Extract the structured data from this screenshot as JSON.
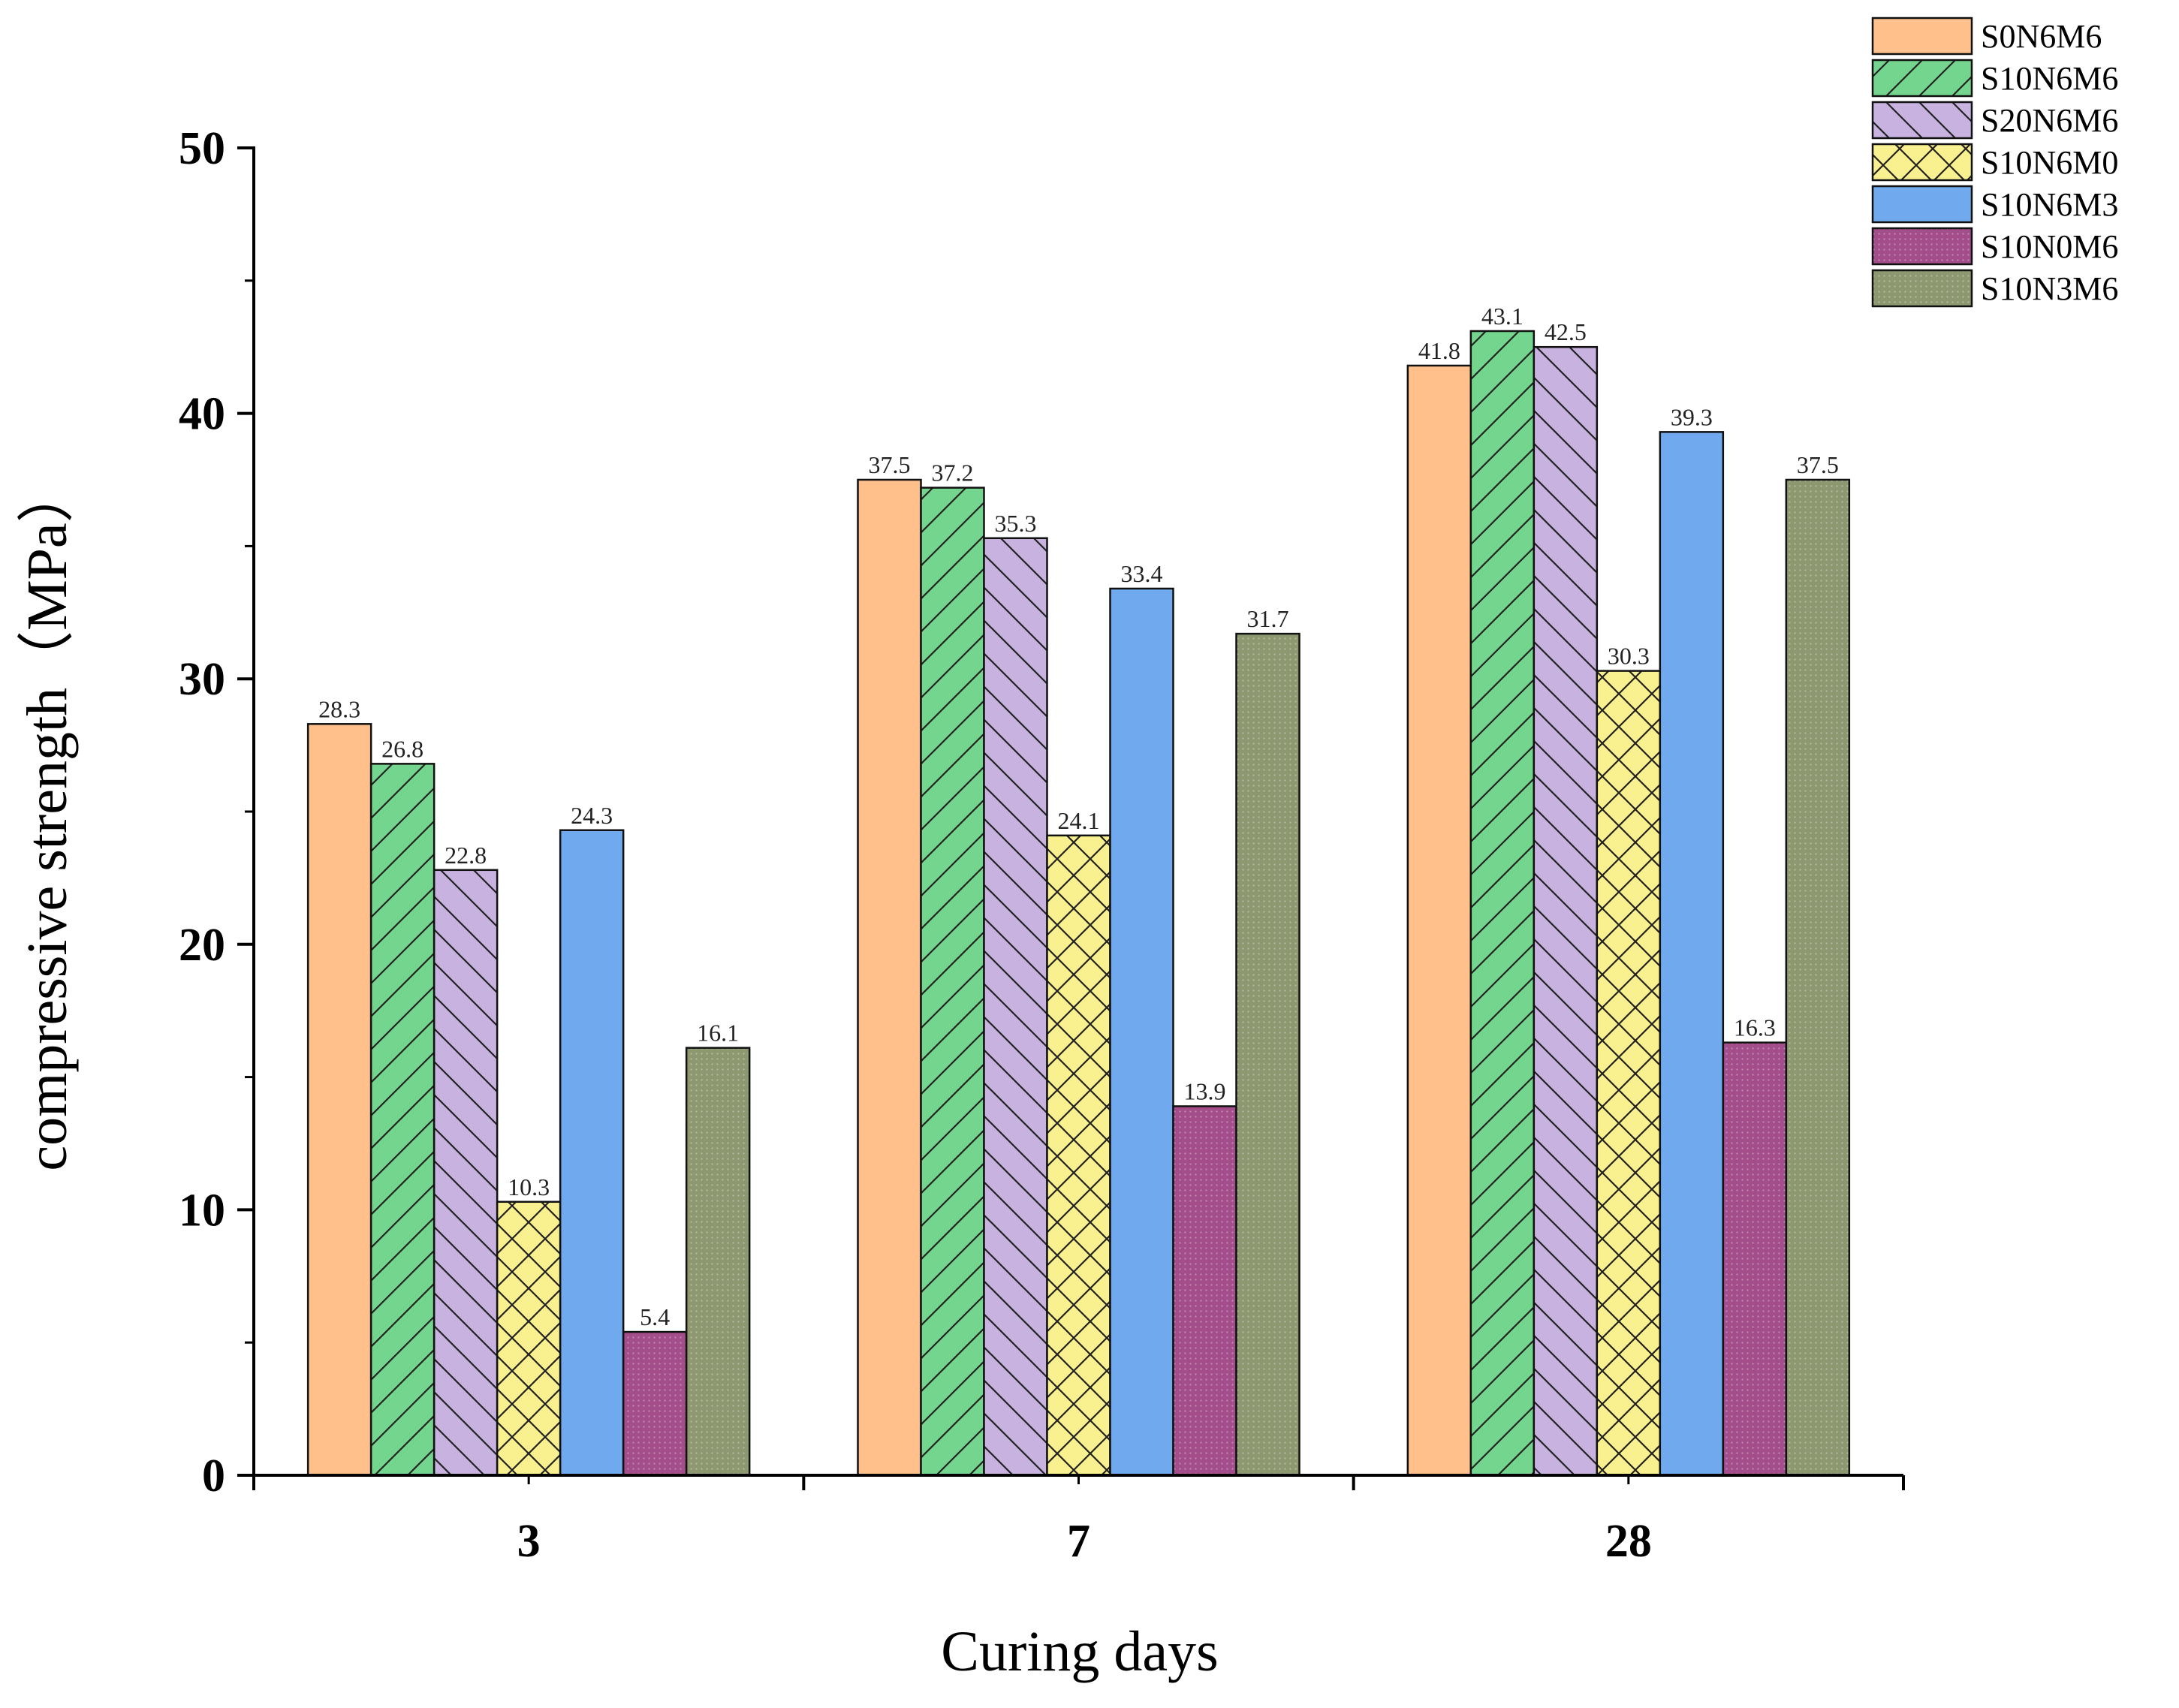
{
  "chart_data": {
    "type": "bar",
    "title": "",
    "xlabel": "Curing days",
    "ylabel": "compressive strength（MPa）",
    "ylim": [
      0,
      50
    ],
    "yticks": [
      0,
      10,
      20,
      30,
      40,
      50
    ],
    "categories": [
      "3",
      "7",
      "28"
    ],
    "legend_position": "top-right",
    "series": [
      {
        "name": "S0N6M6",
        "values": [
          28.3,
          37.5,
          41.8
        ],
        "labels": [
          "28.3",
          "37.5",
          "41.8"
        ],
        "color": "#FFC08C",
        "pattern": "none"
      },
      {
        "name": "S10N6M6",
        "values": [
          26.8,
          37.2,
          43.1
        ],
        "labels": [
          "26.8",
          "37.2",
          "43.1"
        ],
        "color": "#74D68E",
        "pattern": "forward-hatch"
      },
      {
        "name": "S20N6M6",
        "values": [
          22.8,
          35.3,
          42.5
        ],
        "labels": [
          "22.8",
          "35.3",
          "42.5"
        ],
        "color": "#C8B2DF",
        "pattern": "back-hatch"
      },
      {
        "name": "S10N6M0",
        "values": [
          10.3,
          24.1,
          30.3
        ],
        "labels": [
          "10.3",
          "24.1",
          "30.3"
        ],
        "color": "#F9F08F",
        "pattern": "cross-hatch"
      },
      {
        "name": "S10N6M3",
        "values": [
          24.3,
          33.4,
          39.3
        ],
        "labels": [
          "24.3",
          "33.4",
          "39.3"
        ],
        "color": "#71A9EE",
        "pattern": "none"
      },
      {
        "name": "S10N0M6",
        "values": [
          5.4,
          13.9,
          16.3
        ],
        "labels": [
          "5.4",
          "13.9",
          "16.3"
        ],
        "color": "#A34E8A",
        "pattern": "dots"
      },
      {
        "name": "S10N3M6",
        "values": [
          16.1,
          31.7,
          37.5
        ],
        "labels": [
          "16.1",
          "31.7",
          "37.5"
        ],
        "color": "#8E9870",
        "pattern": "dots"
      }
    ]
  }
}
